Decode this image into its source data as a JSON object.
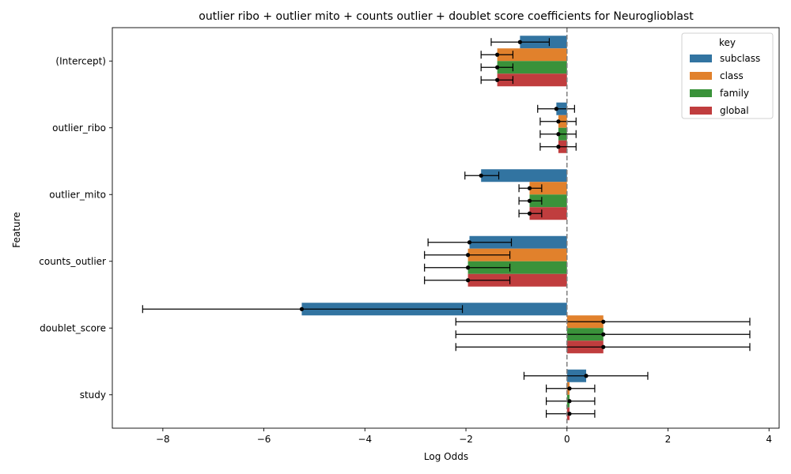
{
  "chart_data": {
    "type": "bar",
    "orientation": "horizontal",
    "title": "outlier ribo + outlier mito + counts outlier + doublet score coefficients for Neuroglioblast",
    "xlabel": "Log Odds",
    "ylabel": "Feature",
    "xlim": [
      -9,
      4.2
    ],
    "xticks": [
      -8,
      -6,
      -4,
      -2,
      0,
      2,
      4
    ],
    "xtick_labels": [
      "−8",
      "−6",
      "−4",
      "−2",
      "0",
      "2",
      "4"
    ],
    "categories": [
      "(Intercept)",
      "outlier_ribo",
      "outlier_mito",
      "counts_outlier",
      "doublet_score",
      "study"
    ],
    "reference_line": 0,
    "legend": {
      "title": "key",
      "position": "top-right"
    },
    "series": [
      {
        "name": "subclass",
        "color": "#3274a1",
        "values": [
          -0.93,
          -0.21,
          -1.7,
          -1.93,
          -5.25,
          0.38
        ],
        "ci_low": [
          -1.5,
          -0.58,
          -2.02,
          -2.75,
          -8.4,
          -0.85
        ],
        "ci_high": [
          -0.35,
          0.15,
          -1.35,
          -1.1,
          -2.07,
          1.6
        ]
      },
      {
        "name": "class",
        "color": "#e1812c",
        "values": [
          -1.38,
          -0.17,
          -0.74,
          -1.96,
          0.72,
          0.05
        ],
        "ci_low": [
          -1.7,
          -0.53,
          -0.95,
          -2.82,
          -2.2,
          -0.41
        ],
        "ci_high": [
          -1.07,
          0.18,
          -0.5,
          -1.13,
          3.62,
          0.55
        ]
      },
      {
        "name": "family",
        "color": "#3a923a",
        "values": [
          -1.38,
          -0.17,
          -0.74,
          -1.96,
          0.72,
          0.05
        ],
        "ci_low": [
          -1.7,
          -0.53,
          -0.95,
          -2.82,
          -2.2,
          -0.41
        ],
        "ci_high": [
          -1.07,
          0.18,
          -0.5,
          -1.13,
          3.62,
          0.55
        ]
      },
      {
        "name": "global",
        "color": "#c03d3e",
        "values": [
          -1.38,
          -0.17,
          -0.74,
          -1.96,
          0.72,
          0.05
        ],
        "ci_low": [
          -1.7,
          -0.53,
          -0.95,
          -2.82,
          -2.2,
          -0.41
        ],
        "ci_high": [
          -1.07,
          0.18,
          -0.5,
          -1.13,
          3.62,
          0.55
        ]
      }
    ]
  }
}
